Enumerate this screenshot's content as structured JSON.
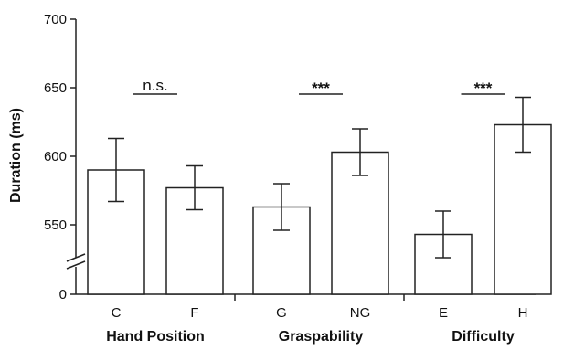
{
  "chart_data": {
    "type": "bar",
    "ylabel": "Duration (ms)",
    "xlabel": "",
    "ylim": [
      500,
      700
    ],
    "yticks": [
      550,
      600,
      650,
      700
    ],
    "axis_break": true,
    "axis_origin_label": "0",
    "categories": [
      "C",
      "F",
      "G",
      "NG",
      "E",
      "H"
    ],
    "values": [
      590,
      577,
      563,
      603,
      543,
      623
    ],
    "errors": [
      23,
      16,
      17,
      17,
      17,
      20
    ],
    "bar_color": "#ffffff",
    "edge_color": "#222222",
    "groups": [
      {
        "label": "Hand Position",
        "members": [
          0,
          1
        ],
        "significance": "n.s."
      },
      {
        "label": "Graspability",
        "members": [
          2,
          3
        ],
        "significance": "***"
      },
      {
        "label": "Difficulty",
        "members": [
          4,
          5
        ],
        "significance": "***"
      }
    ]
  }
}
